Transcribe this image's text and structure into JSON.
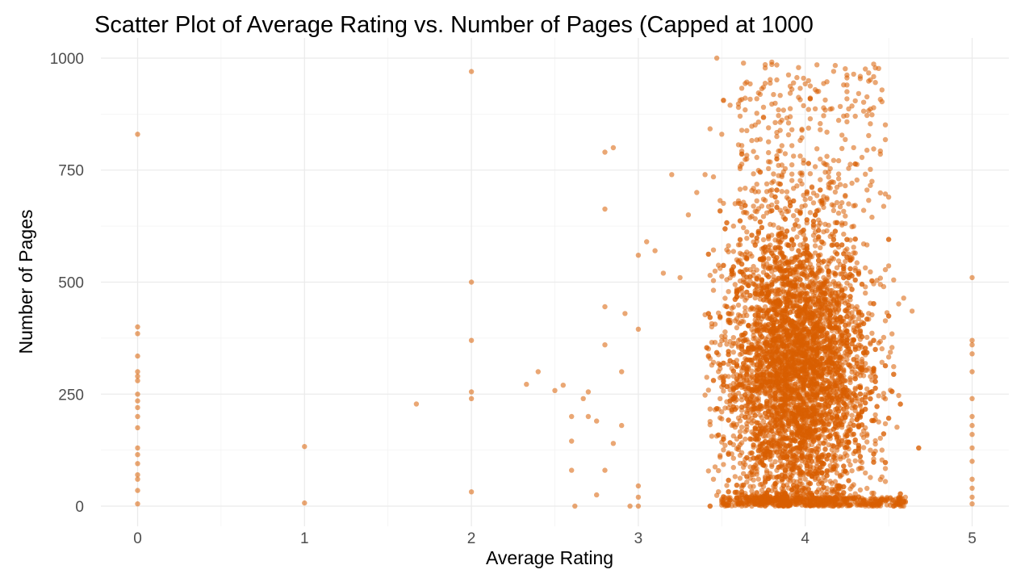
{
  "chart_data": {
    "type": "scatter",
    "title": "Scatter Plot of Average Rating vs. Number of Pages (Capped at 1000",
    "xlabel": "Average Rating",
    "ylabel": "Number of Pages",
    "xlim": [
      -0.22,
      5.22
    ],
    "ylim": [
      -45,
      1045
    ],
    "x_ticks": [
      0,
      1,
      2,
      3,
      4,
      5
    ],
    "x_tick_labels": [
      "0",
      "1",
      "2",
      "3",
      "4",
      "5"
    ],
    "y_ticks": [
      0,
      250,
      500,
      750,
      1000
    ],
    "y_tick_labels": [
      "0",
      "250",
      "500",
      "750",
      "1000"
    ],
    "grid": true,
    "legend": "none",
    "point_color": "#d95f02",
    "point_opacity": 0.55,
    "points": [
      [
        0,
        830
      ],
      [
        0,
        400
      ],
      [
        0,
        385
      ],
      [
        0,
        335
      ],
      [
        0,
        300
      ],
      [
        0,
        290
      ],
      [
        0,
        280
      ],
      [
        0,
        250
      ],
      [
        0,
        235
      ],
      [
        0,
        220
      ],
      [
        0,
        200
      ],
      [
        0,
        175
      ],
      [
        0,
        130
      ],
      [
        0,
        115
      ],
      [
        0,
        95
      ],
      [
        0,
        70
      ],
      [
        0,
        60
      ],
      [
        0,
        35
      ],
      [
        0,
        5
      ],
      [
        1,
        133
      ],
      [
        1,
        7
      ],
      [
        1.67,
        228
      ],
      [
        2,
        970
      ],
      [
        2,
        500
      ],
      [
        2,
        370
      ],
      [
        2,
        255
      ],
      [
        2,
        240
      ],
      [
        2,
        32
      ],
      [
        2.33,
        272
      ],
      [
        2.4,
        300
      ],
      [
        2.5,
        258
      ],
      [
        2.55,
        270
      ],
      [
        2.6,
        200
      ],
      [
        2.6,
        145
      ],
      [
        2.6,
        80
      ],
      [
        2.62,
        0
      ],
      [
        2.67,
        240
      ],
      [
        2.7,
        255
      ],
      [
        2.7,
        200
      ],
      [
        2.75,
        25
      ],
      [
        2.75,
        190
      ],
      [
        2.8,
        360
      ],
      [
        2.8,
        445
      ],
      [
        2.8,
        790
      ],
      [
        2.85,
        800
      ],
      [
        2.8,
        663
      ],
      [
        2.85,
        140
      ],
      [
        2.8,
        80
      ],
      [
        2.9,
        180
      ],
      [
        2.9,
        300
      ],
      [
        2.92,
        430
      ],
      [
        2.95,
        0
      ],
      [
        3,
        0
      ],
      [
        3,
        20
      ],
      [
        3,
        45
      ],
      [
        3,
        395
      ],
      [
        3,
        560
      ],
      [
        3.05,
        590
      ],
      [
        3.1,
        570
      ],
      [
        3.15,
        520
      ],
      [
        3.2,
        740
      ],
      [
        3.25,
        510
      ],
      [
        3.3,
        650
      ],
      [
        3.35,
        700
      ],
      [
        3.4,
        740
      ],
      [
        3.45,
        735
      ],
      [
        3.5,
        830
      ],
      [
        3.47,
        1000
      ],
      [
        3.55,
        895
      ],
      [
        3.6,
        890
      ]
    ]
  }
}
